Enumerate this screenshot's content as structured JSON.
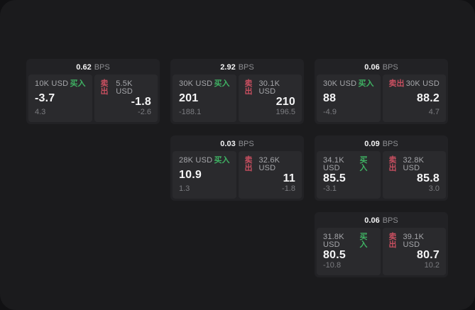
{
  "labels": {
    "bps_suffix": "BPS",
    "buy": "买入",
    "sell": "卖出"
  },
  "colors": {
    "buy-green": "#3fb263",
    "sell-red": "#c84f60",
    "panel-bg": "#1b1b1d",
    "card-bg": "#222225",
    "tile-bg": "#2a2a2d"
  },
  "cards": [
    {
      "bps": "0.62",
      "row": 1,
      "col": 1,
      "buy": {
        "amount": "10K USD",
        "value": "-3.7",
        "delta": "4.3"
      },
      "sell": {
        "amount": "5.5K USD",
        "value": "-1.8",
        "delta": "-2.6"
      }
    },
    {
      "bps": "2.92",
      "row": 1,
      "col": 2,
      "buy": {
        "amount": "30K USD",
        "value": "201",
        "delta": "-188.1"
      },
      "sell": {
        "amount": "30.1K USD",
        "value": "210",
        "delta": "196.5"
      }
    },
    {
      "bps": "0.06",
      "row": 1,
      "col": 3,
      "buy": {
        "amount": "30K USD",
        "value": "88",
        "delta": "-4.9"
      },
      "sell": {
        "amount": "30K USD",
        "value": "88.2",
        "delta": "4.7"
      }
    },
    {
      "bps": "0.03",
      "row": 2,
      "col": 2,
      "buy": {
        "amount": "28K USD",
        "value": "10.9",
        "delta": "1.3"
      },
      "sell": {
        "amount": "32.6K USD",
        "value": "11",
        "delta": "-1.8"
      }
    },
    {
      "bps": "0.09",
      "row": 2,
      "col": 3,
      "buy": {
        "amount": "34.1K USD",
        "value": "85.5",
        "delta": "-3.1"
      },
      "sell": {
        "amount": "32.8K USD",
        "value": "85.8",
        "delta": "3.0"
      }
    },
    {
      "bps": "0.06",
      "row": 3,
      "col": 3,
      "buy": {
        "amount": "31.8K USD",
        "value": "80.5",
        "delta": "-10.8"
      },
      "sell": {
        "amount": "39.1K USD",
        "value": "80.7",
        "delta": "10.2"
      }
    }
  ]
}
